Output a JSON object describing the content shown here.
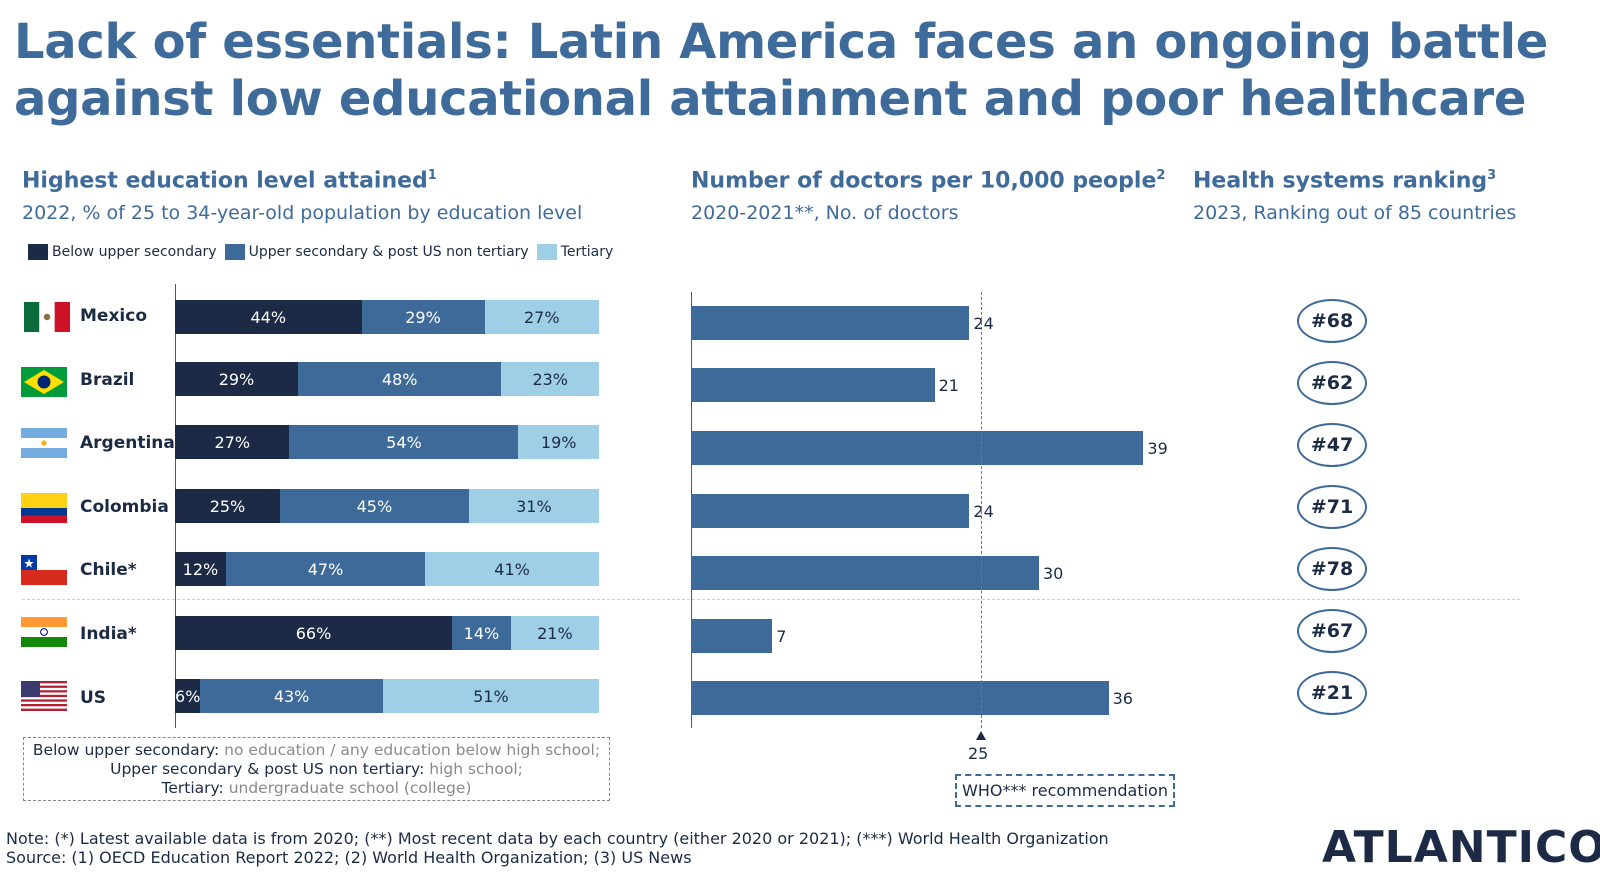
{
  "title": {
    "line1": "Lack of essentials: Latin America faces an ongoing battle",
    "line2": "against low educational attainment and poor healthcare"
  },
  "colors": {
    "below_upper_secondary": "#1c2a45",
    "upper_secondary": "#3e6a99",
    "tertiary": "#9fcfe6",
    "title_blue": "#3f6b9b"
  },
  "education": {
    "title": "Highest education level attained",
    "title_sup": "1",
    "subtitle": "2022, % of 25 to 34-year-old population by education level",
    "legend": [
      "Below upper secondary",
      "Upper secondary & post US non tertiary",
      "Tertiary"
    ]
  },
  "doctors": {
    "title": "Number of doctors per 10,000 people",
    "title_sup": "2",
    "subtitle": "2020-2021**, No. of doctors",
    "who_value": "25",
    "who_label": "WHO*** recommendation"
  },
  "ranking": {
    "title": "Health systems ranking",
    "title_sup": "3",
    "subtitle": "2023, Ranking out of 85 countries"
  },
  "chart_data": [
    {
      "type": "bar",
      "orientation": "horizontal",
      "stacked": true,
      "title": "Highest education level attained",
      "subtitle": "2022, % of 25 to 34-year-old population by education level",
      "categories": [
        "Mexico",
        "Brazil",
        "Argentina",
        "Colombia",
        "Chile*",
        "India*",
        "US"
      ],
      "series": [
        {
          "name": "Below upper secondary",
          "values": [
            44,
            29,
            27,
            25,
            12,
            66,
            6
          ],
          "labels": [
            "44%",
            "29%",
            "27%",
            "25%",
            "12%",
            "66%",
            "6%"
          ]
        },
        {
          "name": "Upper secondary & post US non tertiary",
          "values": [
            29,
            48,
            54,
            45,
            47,
            14,
            43
          ],
          "labels": [
            "29%",
            "48%",
            "54%",
            "45%",
            "47%",
            "14%",
            "43%"
          ]
        },
        {
          "name": "Tertiary",
          "values": [
            27,
            23,
            19,
            31,
            41,
            21,
            51
          ],
          "labels": [
            "27%",
            "23%",
            "19%",
            "31%",
            "41%",
            "21%",
            "51%"
          ]
        }
      ],
      "legend": "top"
    },
    {
      "type": "bar",
      "orientation": "horizontal",
      "title": "Number of doctors per 10,000 people",
      "subtitle": "2020-2021**, No. of doctors",
      "categories": [
        "Mexico",
        "Brazil",
        "Argentina",
        "Colombia",
        "Chile*",
        "India*",
        "US"
      ],
      "values": [
        24,
        21,
        39,
        24,
        30,
        7,
        36
      ],
      "labels": [
        "24",
        "21",
        "39",
        "24",
        "30",
        "7",
        "36"
      ],
      "reference_line": {
        "value": 25,
        "label": "WHO*** recommendation"
      },
      "xlim": [
        0,
        45
      ]
    },
    {
      "type": "table",
      "title": "Health systems ranking",
      "subtitle": "2023, Ranking out of 85 countries",
      "categories": [
        "Mexico",
        "Brazil",
        "Argentina",
        "Colombia",
        "Chile*",
        "India*",
        "US"
      ],
      "values": [
        68,
        62,
        47,
        71,
        78,
        67,
        21
      ],
      "labels": [
        "#68",
        "#62",
        "#47",
        "#71",
        "#78",
        "#67",
        "#21"
      ]
    }
  ],
  "definitions": [
    {
      "term": "Below upper secondary:",
      "desc": " no education / any education below high school;"
    },
    {
      "term": "Upper secondary & post US non tertiary:",
      "desc": " high school;"
    },
    {
      "term": "Tertiary:",
      "desc": " undergraduate school (college)"
    }
  ],
  "notes": {
    "note": "Note: (*) Latest available data is from 2020; (**) Most recent data by each country (either 2020 or 2021); (***) World Health Organization",
    "source": "Source: (1) OECD Education Report 2022; (2) World Health Organization; (3) US News"
  },
  "logo": "ATLANTICO"
}
